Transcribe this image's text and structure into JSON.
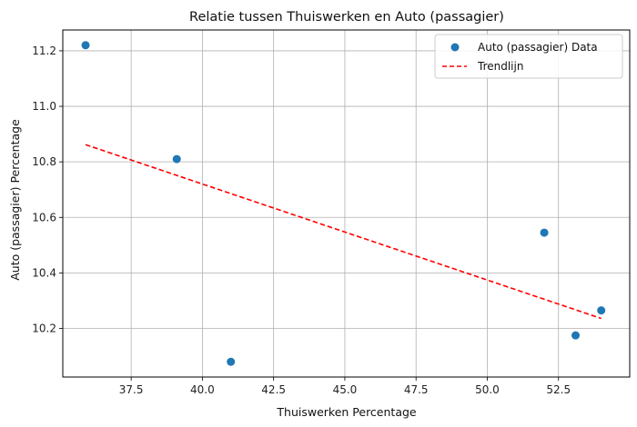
{
  "chart_data": {
    "type": "scatter",
    "title": "Relatie tussen Thuiswerken en Auto (passagier)",
    "xlabel": "Thuiswerken Percentage",
    "ylabel": "Auto (passagier) Percentage",
    "xlim": [
      35.1,
      55.0
    ],
    "ylim": [
      10.025,
      11.275
    ],
    "xticks": [
      37.5,
      40.0,
      42.5,
      45.0,
      47.5,
      50.0,
      52.5
    ],
    "xtick_labels": [
      "37.5",
      "40.0",
      "42.5",
      "45.0",
      "47.5",
      "50.0",
      "52.5"
    ],
    "yticks": [
      10.2,
      10.4,
      10.6,
      10.8,
      11.0,
      11.2
    ],
    "ytick_labels": [
      "10.2",
      "10.4",
      "10.6",
      "10.8",
      "11.0",
      "11.2"
    ],
    "grid": true,
    "legend_position": "top-right",
    "series": [
      {
        "name": "Auto (passagier) Data",
        "kind": "scatter",
        "color": "#1f77b4",
        "x": [
          35.9,
          39.1,
          41.0,
          52.0,
          53.1,
          54.0
        ],
        "y": [
          11.22,
          10.81,
          10.08,
          10.545,
          10.175,
          10.265
        ]
      },
      {
        "name": "Trendlijn",
        "kind": "line",
        "style": "dashed",
        "color": "#ff0000",
        "x": [
          35.9,
          54.0
        ],
        "y": [
          10.862,
          10.236
        ]
      }
    ]
  }
}
